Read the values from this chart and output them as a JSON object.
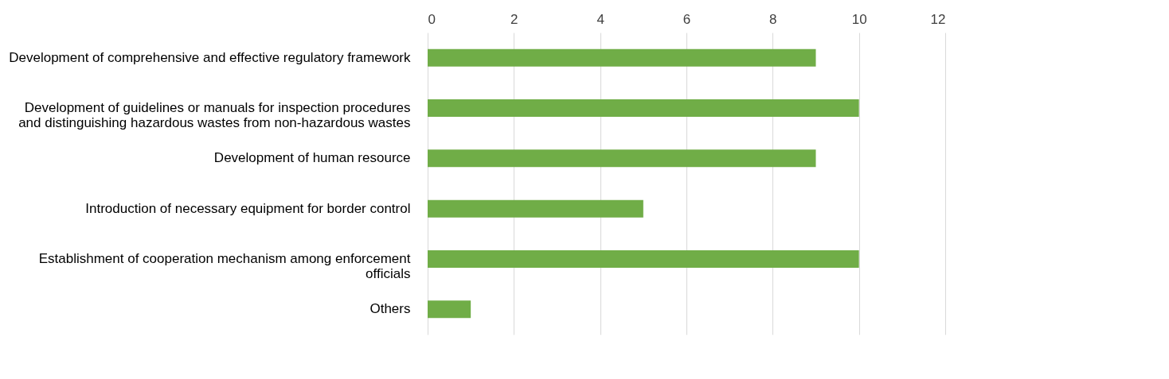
{
  "chart_data": {
    "type": "bar",
    "orientation": "horizontal",
    "categories": [
      "Development of comprehensive and effective regulatory framework",
      "Development of guidelines or manuals for inspection procedures and distinguishing hazardous wastes from non-hazardous wastes",
      "Development of human resource",
      "Introduction of necessary equipment for border control",
      "Establishment of cooperation mechanism among enforcement officials",
      "Others"
    ],
    "values": [
      9,
      10,
      9,
      5,
      10,
      1
    ],
    "color": "#70ad47",
    "xlim": [
      0,
      12
    ],
    "xticks": [
      0,
      2,
      4,
      6,
      8,
      10,
      12
    ],
    "grid": "x"
  }
}
